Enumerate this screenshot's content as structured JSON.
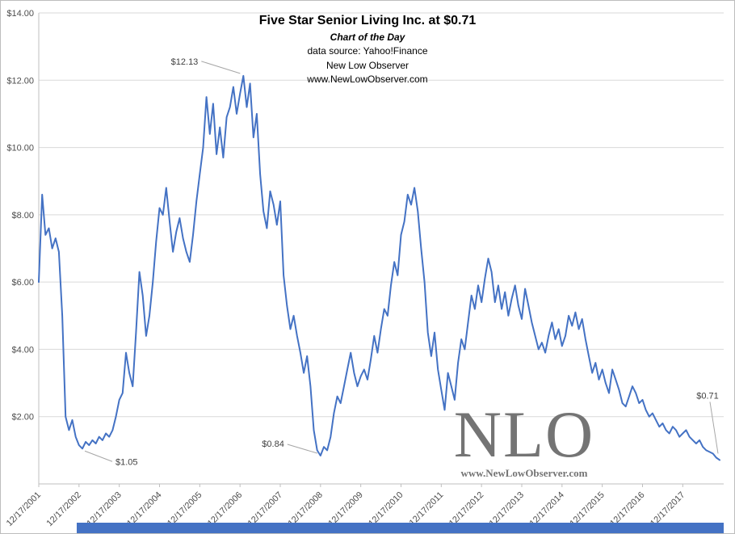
{
  "header": {
    "title": "Five Star Senior Living Inc. at $0.71",
    "subtitle_lines": [
      "Chart of the Day",
      "data source: Yahoo!Finance",
      "New Low Observer",
      "www.NewLowObserver.com"
    ]
  },
  "watermark": {
    "text": "NLO",
    "url": "www.NewLowObserver.com"
  },
  "colors": {
    "line": "#4472c4",
    "grid": "#d9d9d9",
    "axis": "#bfbfbf",
    "tick_text": "#4d4d4d",
    "annotation_line": "#a6a6a6",
    "annotation_text": "#404040",
    "bottom_bar": "#4472c4"
  },
  "chart_data": {
    "type": "line",
    "title": "Five Star Senior Living Inc. at $0.71",
    "xlabel": "",
    "ylabel": "",
    "ylim": [
      0,
      14
    ],
    "grid": "horizontal",
    "legend": "none",
    "x_start": "12/2001",
    "interval": "monthly",
    "x_tick_labels": [
      "12/17/2001",
      "12/17/2002",
      "12/17/2003",
      "12/17/2004",
      "12/17/2005",
      "12/17/2006",
      "12/17/2007",
      "12/17/2008",
      "12/17/2009",
      "12/17/2010",
      "12/17/2011",
      "12/17/2012",
      "12/17/2013",
      "12/17/2014",
      "12/17/2015",
      "12/17/2016",
      "12/17/2017"
    ],
    "y_ticks": [
      {
        "label": "$14.00",
        "value": 14
      },
      {
        "label": "$12.00",
        "value": 12
      },
      {
        "label": "$10.00",
        "value": 10
      },
      {
        "label": "$8.00",
        "value": 8
      },
      {
        "label": "$6.00",
        "value": 6
      },
      {
        "label": "$4.00",
        "value": 4
      },
      {
        "label": "$2.00",
        "value": 2
      }
    ],
    "values": [
      6.0,
      8.6,
      7.4,
      7.6,
      7.0,
      7.3,
      6.9,
      5.0,
      2.0,
      1.6,
      1.9,
      1.4,
      1.15,
      1.05,
      1.25,
      1.15,
      1.3,
      1.2,
      1.4,
      1.3,
      1.5,
      1.4,
      1.6,
      2.0,
      2.5,
      2.7,
      3.9,
      3.3,
      2.9,
      4.5,
      6.3,
      5.6,
      4.4,
      5.0,
      6.0,
      7.2,
      8.2,
      8.0,
      8.8,
      7.8,
      6.9,
      7.5,
      7.9,
      7.3,
      6.9,
      6.6,
      7.4,
      8.4,
      9.2,
      10.0,
      11.5,
      10.4,
      11.3,
      9.8,
      10.6,
      9.7,
      10.9,
      11.2,
      11.8,
      11.0,
      11.6,
      12.13,
      11.2,
      11.9,
      10.3,
      11.0,
      9.2,
      8.1,
      7.6,
      8.7,
      8.3,
      7.7,
      8.4,
      6.2,
      5.3,
      4.6,
      5.0,
      4.4,
      3.9,
      3.3,
      3.8,
      2.9,
      1.6,
      1.0,
      0.84,
      1.1,
      1.0,
      1.4,
      2.1,
      2.6,
      2.4,
      2.9,
      3.4,
      3.9,
      3.3,
      2.9,
      3.2,
      3.4,
      3.1,
      3.7,
      4.4,
      3.9,
      4.6,
      5.2,
      5.0,
      5.9,
      6.6,
      6.2,
      7.4,
      7.8,
      8.6,
      8.3,
      8.8,
      8.1,
      7.0,
      6.0,
      4.5,
      3.8,
      4.5,
      3.4,
      2.8,
      2.2,
      3.3,
      2.9,
      2.5,
      3.6,
      4.3,
      4.0,
      4.8,
      5.6,
      5.2,
      5.9,
      5.4,
      6.1,
      6.7,
      6.3,
      5.4,
      5.9,
      5.2,
      5.7,
      5.0,
      5.5,
      5.9,
      5.3,
      4.9,
      5.8,
      5.3,
      4.8,
      4.4,
      4.0,
      4.2,
      3.9,
      4.4,
      4.8,
      4.3,
      4.6,
      4.1,
      4.4,
      5.0,
      4.7,
      5.1,
      4.6,
      4.9,
      4.3,
      3.8,
      3.3,
      3.6,
      3.1,
      3.4,
      3.0,
      2.7,
      3.4,
      3.1,
      2.8,
      2.4,
      2.3,
      2.6,
      2.9,
      2.7,
      2.4,
      2.5,
      2.2,
      2.0,
      2.1,
      1.9,
      1.7,
      1.8,
      1.6,
      1.5,
      1.7,
      1.6,
      1.4,
      1.5,
      1.6,
      1.4,
      1.3,
      1.2,
      1.3,
      1.1,
      1.0,
      0.95,
      0.9,
      0.78,
      0.71
    ],
    "annotations": [
      {
        "label": "$12.13",
        "index": 61,
        "price": 12.13,
        "line": [
          -52,
          -18,
          -4,
          -3
        ],
        "text": [
          -56,
          -14
        ],
        "anchor": "end"
      },
      {
        "label": "$1.05",
        "index": 13,
        "price": 1.05,
        "line": [
          3,
          3,
          37,
          16
        ],
        "text": [
          41,
          20
        ],
        "anchor": "start"
      },
      {
        "label": "$0.84",
        "index": 84,
        "price": 0.84,
        "line": [
          -41,
          -14,
          -4,
          -3
        ],
        "text": [
          -45,
          -11
        ],
        "anchor": "end"
      },
      {
        "label": "$0.71",
        "index": 203,
        "price": 0.71,
        "line": [
          -12,
          -72,
          -2,
          -8
        ],
        "text": [
          -15,
          -76
        ],
        "anchor": "middle"
      }
    ]
  }
}
